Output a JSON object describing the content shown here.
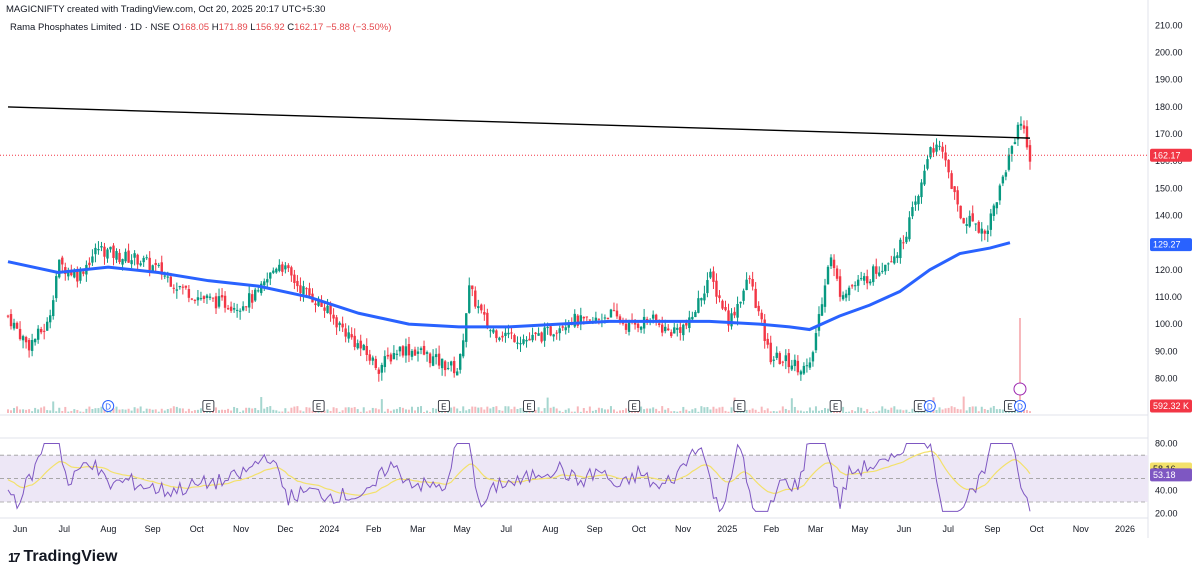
{
  "header": {
    "credit": "MAGICNIFTY created with TradingView.com, Oct 20, 2025 20:17 UTC+5:30",
    "symbol": "Rama Phosphates Limited · 1D · NSE",
    "o_label": "O",
    "o_value": "168.05",
    "h_label": "H",
    "h_value": "171.89",
    "l_label": "L",
    "l_value": "156.92",
    "c_label": "C",
    "c_value": "162.17",
    "change": "−5.88 (−3.50%)"
  },
  "brand": {
    "name": "TradingView",
    "mark": "17"
  },
  "colors": {
    "up": "#089981",
    "down": "#f23645",
    "ma": "#2962ff",
    "trendline": "#000000",
    "rsi": "#7e57c2",
    "rsi_ma": "#f3e16b",
    "rsi_band": "#ede7f6",
    "price_tag": "#f23645",
    "ma_tag": "#2962ff"
  },
  "chart_data": [
    {
      "type": "candlestick",
      "name": "price",
      "x": [
        "Jun",
        "Jul",
        "Aug",
        "Sep",
        "Oct",
        "Nov",
        "Dec",
        "2024",
        "Feb",
        "Mar",
        "May",
        "Jul",
        "Aug",
        "Sep",
        "Oct",
        "Nov",
        "2025",
        "Feb",
        "Mar",
        "May",
        "Jun",
        "Jul",
        "Sep",
        "Oct",
        "Nov",
        "2026"
      ],
      "y_ticks": [
        80,
        90,
        100,
        110,
        120,
        130,
        140,
        150,
        160,
        170,
        180,
        190,
        200,
        210
      ],
      "ylim": [
        75,
        212
      ],
      "last_price": 162.17,
      "last_price_label": "162.17",
      "ma_last": 129.27,
      "ma_last_label": "129.27",
      "volume_label": "592.32 K",
      "close_path": [
        [
          0,
          103
        ],
        [
          0.02,
          92
        ],
        [
          0.04,
          100
        ],
        [
          0.05,
          122
        ],
        [
          0.07,
          118
        ],
        [
          0.09,
          128
        ],
        [
          0.11,
          125
        ],
        [
          0.13,
          124
        ],
        [
          0.15,
          120
        ],
        [
          0.17,
          114
        ],
        [
          0.19,
          110
        ],
        [
          0.21,
          108
        ],
        [
          0.23,
          107
        ],
        [
          0.25,
          111
        ],
        [
          0.27,
          123
        ],
        [
          0.29,
          114
        ],
        [
          0.31,
          108
        ],
        [
          0.33,
          100
        ],
        [
          0.35,
          92
        ],
        [
          0.37,
          84
        ],
        [
          0.39,
          91
        ],
        [
          0.41,
          90
        ],
        [
          0.43,
          86
        ],
        [
          0.45,
          83
        ],
        [
          0.46,
          113
        ],
        [
          0.48,
          98
        ],
        [
          0.5,
          96
        ],
        [
          0.52,
          94
        ],
        [
          0.54,
          97
        ],
        [
          0.56,
          102
        ],
        [
          0.58,
          100
        ],
        [
          0.6,
          104
        ],
        [
          0.62,
          99
        ],
        [
          0.64,
          102
        ],
        [
          0.66,
          97
        ],
        [
          0.68,
          100
        ],
        [
          0.7,
          118
        ],
        [
          0.72,
          101
        ],
        [
          0.74,
          117
        ],
        [
          0.76,
          88
        ],
        [
          0.78,
          86
        ],
        [
          0.8,
          83
        ],
        [
          0.82,
          126
        ],
        [
          0.83,
          112
        ],
        [
          0.85,
          115
        ],
        [
          0.87,
          121
        ],
        [
          0.89,
          128
        ],
        [
          0.91,
          148
        ],
        [
          0.92,
          166
        ],
        [
          0.935,
          162
        ],
        [
          0.95,
          139
        ],
        [
          0.965,
          138
        ],
        [
          0.975,
          133
        ],
        [
          0.99,
          150
        ],
        [
          1.01,
          176
        ],
        [
          1.02,
          162
        ]
      ],
      "moving_average": [
        [
          0,
          123
        ],
        [
          0.05,
          119
        ],
        [
          0.1,
          121
        ],
        [
          0.15,
          119
        ],
        [
          0.2,
          116
        ],
        [
          0.25,
          114
        ],
        [
          0.3,
          110
        ],
        [
          0.35,
          104
        ],
        [
          0.4,
          100
        ],
        [
          0.45,
          99
        ],
        [
          0.5,
          99
        ],
        [
          0.55,
          100
        ],
        [
          0.6,
          101
        ],
        [
          0.65,
          101
        ],
        [
          0.7,
          101
        ],
        [
          0.75,
          100
        ],
        [
          0.78,
          99
        ],
        [
          0.8,
          98
        ],
        [
          0.83,
          103
        ],
        [
          0.86,
          107
        ],
        [
          0.89,
          112
        ],
        [
          0.92,
          120
        ],
        [
          0.95,
          126
        ],
        [
          0.98,
          128
        ],
        [
          1.0,
          130
        ]
      ],
      "trendline": {
        "from": [
          0,
          180
        ],
        "to": [
          1.02,
          168.5
        ]
      },
      "event_markers": [
        "D",
        "E",
        "E",
        "E",
        "E",
        "E",
        "E",
        "E",
        "E",
        "D",
        "E",
        "D"
      ]
    },
    {
      "type": "line",
      "name": "RSI",
      "y_ticks": [
        20,
        40,
        60,
        80
      ],
      "ylim": [
        18,
        83
      ],
      "band": [
        30,
        70
      ],
      "mid": 50,
      "rsi_last": 58.16,
      "rsi_last_label": "58.16",
      "rsi_ma_last": 53.18,
      "rsi_ma_last_label": "53.18"
    }
  ]
}
